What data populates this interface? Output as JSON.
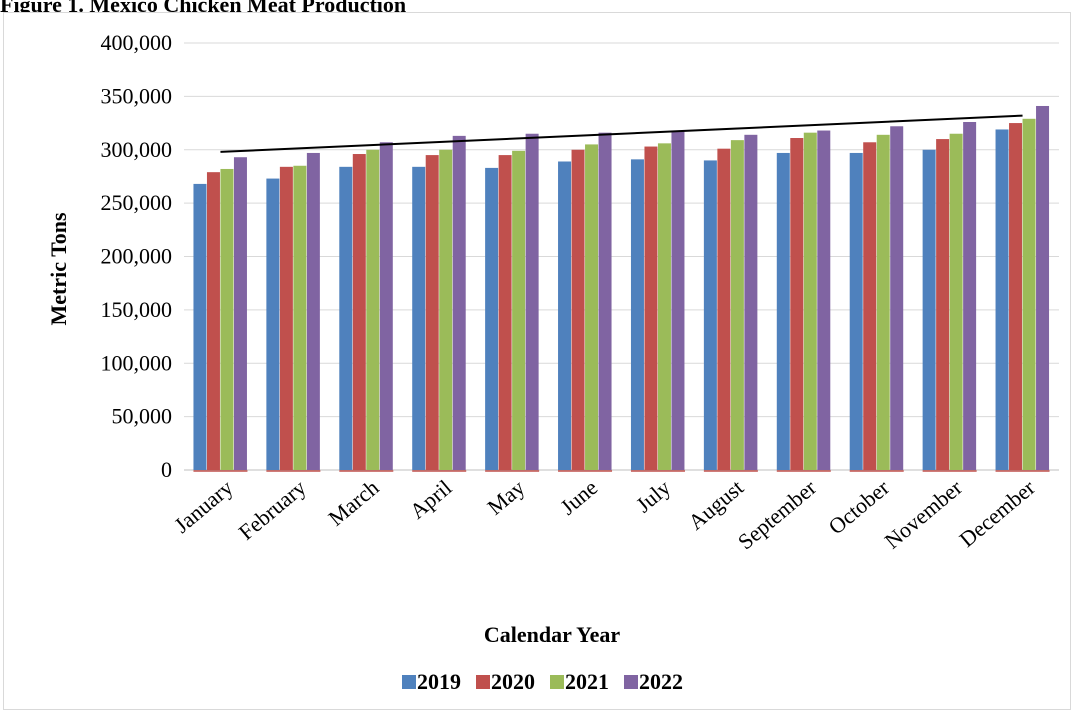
{
  "title": "Figure 1. Mexico Chicken Meat Production",
  "chart_data": {
    "type": "bar",
    "title": "Figure 1. Mexico Chicken Meat Production",
    "xlabel": "Calendar Year",
    "ylabel": "Metric Tons",
    "ylim": [
      0,
      400000
    ],
    "yticks": [
      0,
      50000,
      100000,
      150000,
      200000,
      250000,
      300000,
      350000,
      400000
    ],
    "ytick_labels": [
      "0",
      "50,000",
      "100,000",
      "150,000",
      "200,000",
      "250,000",
      "300,000",
      "350,000",
      "400,000"
    ],
    "grid": true,
    "legend_position": "bottom",
    "categories": [
      "January",
      "February",
      "March",
      "April",
      "May",
      "June",
      "July",
      "August",
      "September",
      "October",
      "November",
      "December"
    ],
    "series": [
      {
        "name": "2019",
        "color": "#4f81bd",
        "values": [
          268000,
          273000,
          284000,
          284000,
          283000,
          289000,
          291000,
          290000,
          297000,
          297000,
          300000,
          319000
        ]
      },
      {
        "name": "2020",
        "color": "#c0504d",
        "values": [
          279000,
          284000,
          296000,
          295000,
          295000,
          300000,
          303000,
          301000,
          311000,
          307000,
          310000,
          325000
        ]
      },
      {
        "name": "2021",
        "color": "#9bbb59",
        "values": [
          282000,
          285000,
          300000,
          300000,
          299000,
          305000,
          306000,
          309000,
          316000,
          314000,
          315000,
          329000
        ]
      },
      {
        "name": "2022",
        "color": "#8064a2",
        "values": [
          293000,
          297000,
          307000,
          313000,
          315000,
          316000,
          318000,
          314000,
          318000,
          322000,
          326000,
          341000
        ]
      }
    ],
    "trendline": {
      "series": "2022",
      "color": "#000000",
      "start_value": 298000,
      "end_value": 332000
    }
  }
}
